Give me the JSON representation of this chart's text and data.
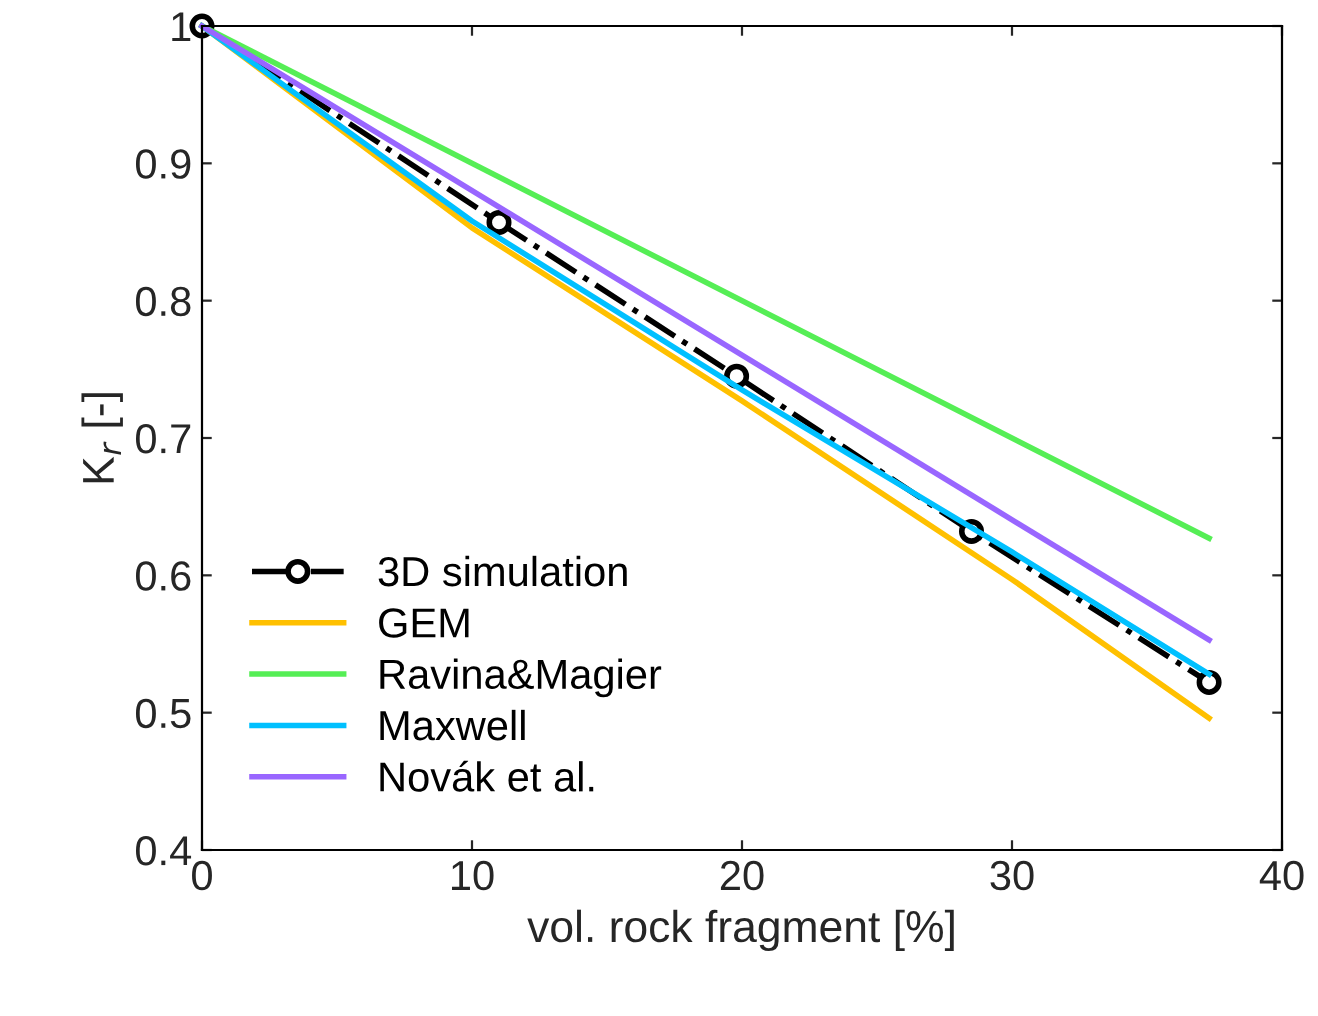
{
  "chart_data": {
    "type": "line",
    "xlabel": "vol. rock fragment [%]",
    "ylabel": "K$_{r}$ [-]",
    "xlim": [
      0,
      40
    ],
    "xticks": [
      0,
      10,
      20,
      30,
      40
    ],
    "ylim": [
      0.4,
      1
    ],
    "yticks": [
      0.4,
      0.5,
      0.6,
      0.7,
      0.8,
      0.9,
      {
        "value": 1,
        "label": "1"
      }
    ],
    "grid": false,
    "legend": "bottom left",
    "series": [
      {
        "name": "3D simulation",
        "color": "#000000",
        "x": [
          0,
          11,
          19.8,
          28.5,
          37.3
        ],
        "values": [
          1,
          0.857,
          0.745,
          0.632,
          0.522
        ],
        "marker": "circle",
        "line_style": "dashdot"
      },
      {
        "name": "GEM",
        "color": "#ffc000",
        "x": [
          0,
          10,
          20,
          30,
          37.3
        ],
        "values": [
          1,
          0.853,
          0.727,
          0.597,
          0.496
        ]
      },
      {
        "name": "Ravina&Magier",
        "color": "#55ee55",
        "x": [
          0,
          37.3
        ],
        "values": [
          1,
          0.627
        ]
      },
      {
        "name": "Maxwell",
        "color": "#00c0ff",
        "x": [
          0,
          10,
          20,
          30,
          37.3
        ],
        "values": [
          1,
          0.858,
          0.735,
          0.617,
          0.528
        ]
      },
      {
        "name": "Novák et al.",
        "color": "#9966ff",
        "x": [
          0,
          37.3
        ],
        "values": [
          1,
          0.553
        ]
      }
    ]
  }
}
